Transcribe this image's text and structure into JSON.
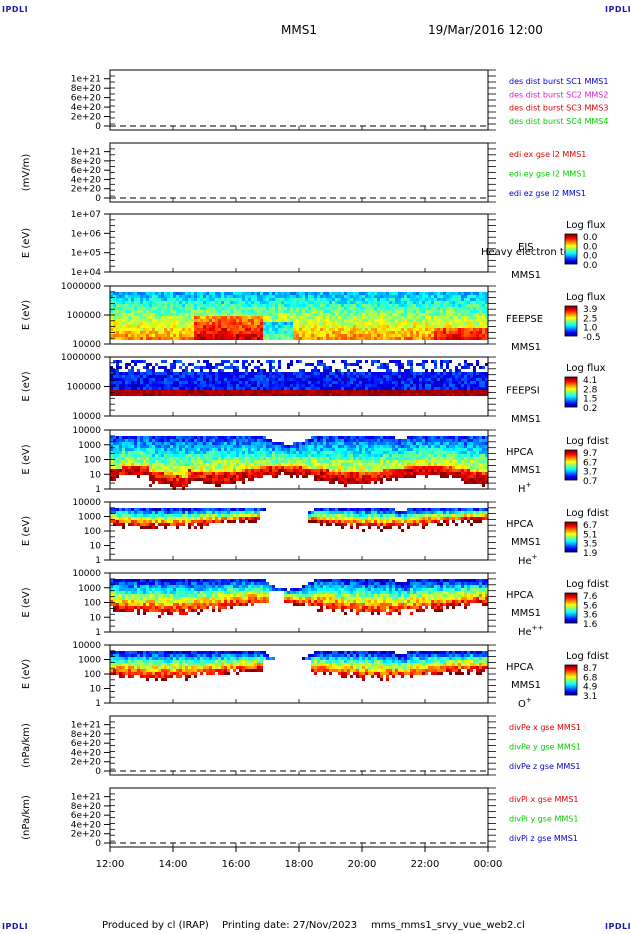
{
  "header": {
    "corner_label": "IPDLI",
    "spacecraft": "MMS1",
    "datetime": "19/Mar/2016 12:00"
  },
  "footer": {
    "credit": "Produced by cl (IRAP)",
    "print_date": "Printing date: 27/Nov/2023",
    "script": "mms_mms1_srvy_vue_web2.cl"
  },
  "colors": {
    "magenta": "#cc22cc",
    "red": "#dd0000",
    "green": "#00cc00",
    "blue": "#0000cc"
  },
  "chart_data": {
    "type": "heatmap",
    "time_axis": {
      "range": [
        "12:00",
        "00:00"
      ],
      "ticks": [
        "12:00",
        "14:00",
        "16:00",
        "18:00",
        "20:00",
        "22:00",
        "00:00"
      ]
    },
    "panels": [
      {
        "id": "des-dist",
        "kind": "line",
        "ylabel": "",
        "ylim": [
          0,
          1.1e+21
        ],
        "yticks": [
          "1e+21",
          "8e+20",
          "6e+20",
          "4e+20",
          "2e+20",
          "0"
        ],
        "legend": [
          {
            "label": "des dist burst SC1 MMS1",
            "color": "#0000cc"
          },
          {
            "label": "des dist burst SC2 MMS2",
            "color": "#cc22cc"
          },
          {
            "label": "des dist burst SC3 MMS3",
            "color": "#dd0000"
          },
          {
            "label": "des dist burst SC4 MMS4",
            "color": "#00cc00"
          }
        ]
      },
      {
        "id": "edi-e",
        "kind": "line",
        "ylabel": "(mV/m)",
        "ylim": [
          0,
          1.1e+21
        ],
        "yticks": [
          "1e+21",
          "8e+20",
          "6e+20",
          "4e+20",
          "2e+20",
          "0"
        ],
        "legend": [
          {
            "label": "edi ex gse l2 MMS1",
            "color": "#dd0000"
          },
          {
            "label": "edi ey gse l2 MMS1",
            "color": "#00cc00"
          },
          {
            "label": "edi ez gse l2 MMS1",
            "color": "#0000cc"
          }
        ]
      },
      {
        "id": "eis",
        "kind": "spectrogram",
        "ylabel": "E (eV)",
        "yscale": "log",
        "yticks": [
          "1e+07",
          "1e+06",
          "1e+05",
          "1e+04"
        ],
        "instrument": "EIS",
        "subtitle": "Heavy electron to",
        "spacecraft_label": "MMS1",
        "species": "",
        "colorbar_title": "Log flux",
        "colorbar_ticks": [
          "0.0",
          "0.0",
          "0.0",
          "0.0"
        ]
      },
      {
        "id": "feepse",
        "kind": "spectrogram",
        "ylabel": "E (eV)",
        "yscale": "log",
        "yticks": [
          "1000000",
          "100000",
          "10000"
        ],
        "instrument": "FEEPSE",
        "subtitle": "",
        "spacecraft_label": "MMS1",
        "species": "",
        "colorbar_title": "Log flux",
        "colorbar_ticks": [
          "3.9",
          "2.5",
          "1.0",
          "-0.5"
        ]
      },
      {
        "id": "feepsi",
        "kind": "spectrogram",
        "ylabel": "E (eV)",
        "yscale": "log",
        "yticks": [
          "1000000",
          "100000",
          "10000"
        ],
        "instrument": "FEEPSI",
        "subtitle": "",
        "spacecraft_label": "MMS1",
        "species": "",
        "colorbar_title": "Log flux",
        "colorbar_ticks": [
          "4.1",
          "2.8",
          "1.5",
          "0.2"
        ]
      },
      {
        "id": "hpca-h",
        "kind": "spectrogram",
        "ylabel": "E (eV)",
        "yscale": "log",
        "yticks": [
          "10000",
          "1000",
          "100",
          "10",
          "1"
        ],
        "instrument": "HPCA",
        "subtitle": "",
        "spacecraft_label": "MMS1",
        "species": "H",
        "species_charge": "+",
        "colorbar_title": "Log fdist",
        "colorbar_ticks": [
          "9.7",
          "6.7",
          "3.7",
          "0.7"
        ]
      },
      {
        "id": "hpca-he",
        "kind": "spectrogram",
        "ylabel": "E (eV)",
        "yscale": "log",
        "yticks": [
          "10000",
          "1000",
          "100",
          "10",
          "1"
        ],
        "instrument": "HPCA",
        "subtitle": "",
        "spacecraft_label": "MMS1",
        "species": "He",
        "species_charge": "+",
        "colorbar_title": "Log fdist",
        "colorbar_ticks": [
          "6.7",
          "5.1",
          "3.5",
          "1.9"
        ]
      },
      {
        "id": "hpca-he2",
        "kind": "spectrogram",
        "ylabel": "E (eV)",
        "yscale": "log",
        "yticks": [
          "10000",
          "1000",
          "100",
          "10",
          "1"
        ],
        "instrument": "HPCA",
        "subtitle": "",
        "spacecraft_label": "MMS1",
        "species": "He",
        "species_charge": "++",
        "colorbar_title": "Log fdist",
        "colorbar_ticks": [
          "7.6",
          "5.6",
          "3.6",
          "1.6"
        ]
      },
      {
        "id": "hpca-o",
        "kind": "spectrogram",
        "ylabel": "E (eV)",
        "yscale": "log",
        "yticks": [
          "10000",
          "1000",
          "100",
          "10",
          "1"
        ],
        "instrument": "HPCA",
        "subtitle": "",
        "spacecraft_label": "MMS1",
        "species": "O",
        "species_charge": "+",
        "colorbar_title": "Log fdist",
        "colorbar_ticks": [
          "8.7",
          "6.8",
          "4.9",
          "3.1"
        ]
      },
      {
        "id": "divpe",
        "kind": "line",
        "ylabel": "(nPa/km)",
        "ylim": [
          0,
          1.1e+21
        ],
        "yticks": [
          "1e+21",
          "8e+20",
          "6e+20",
          "4e+20",
          "2e+20",
          "0"
        ],
        "legend": [
          {
            "label": "divPe x gse MMS1",
            "color": "#dd0000"
          },
          {
            "label": "divPe y gse MMS1",
            "color": "#00cc00"
          },
          {
            "label": "divPe z gse MMS1",
            "color": "#0000cc"
          }
        ]
      },
      {
        "id": "divpi",
        "kind": "line",
        "ylabel": "(nPa/km)",
        "ylim": [
          0,
          1.1e+21
        ],
        "yticks": [
          "1e+21",
          "8e+20",
          "6e+20",
          "4e+20",
          "2e+20",
          "0"
        ],
        "legend": [
          {
            "label": "divPi x gse MMS1",
            "color": "#dd0000"
          },
          {
            "label": "divPi y gse MMS1",
            "color": "#00cc00"
          },
          {
            "label": "divPi z gse MMS1",
            "color": "#0000cc"
          }
        ]
      }
    ]
  }
}
